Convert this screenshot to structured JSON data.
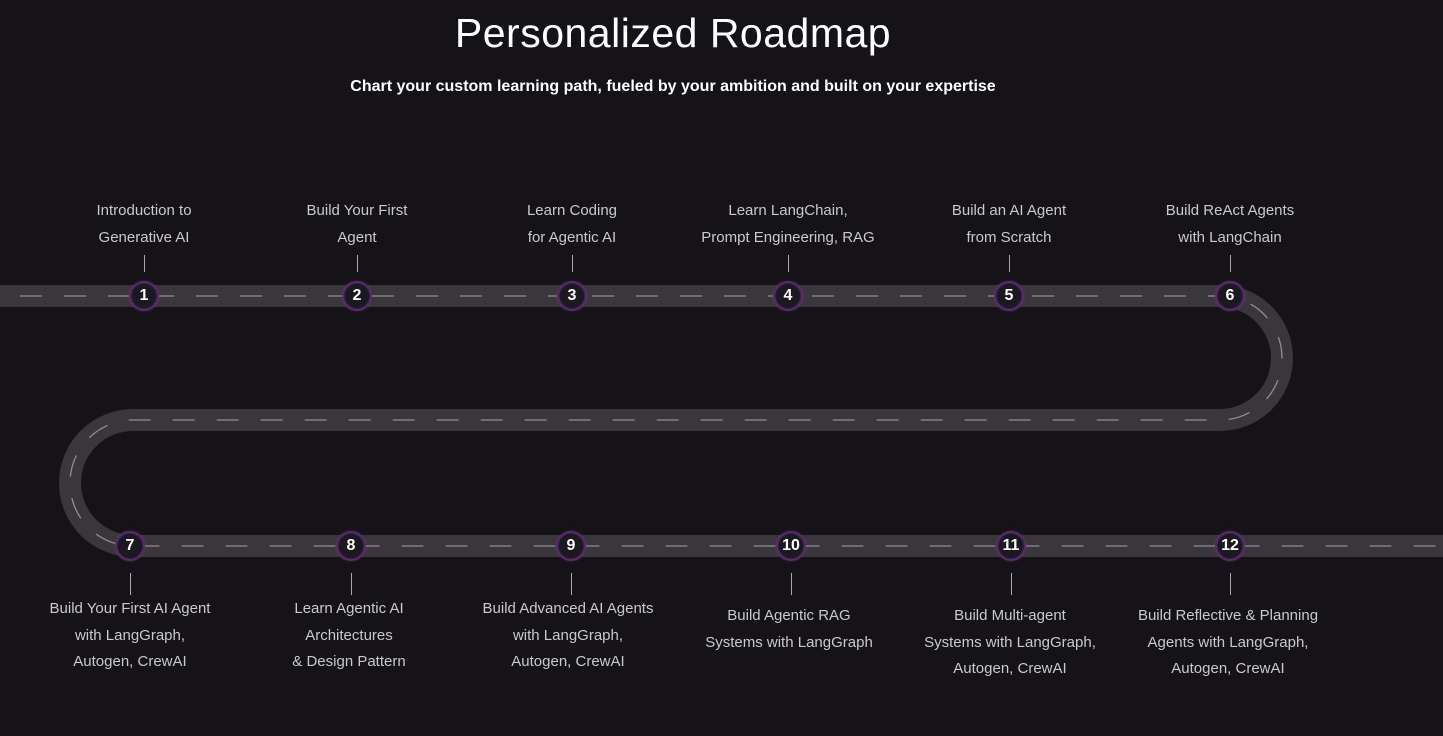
{
  "header": {
    "title": "Personalized Roadmap",
    "subtitle": "Chart your custom learning path, fueled by your ambition and built on your expertise"
  },
  "colors": {
    "background": "#151317",
    "road": "#39373b",
    "lane_dash": "#8f8f94",
    "marker_ring": "#5b2a63",
    "marker_fill": "#1b1820",
    "label_text": "#c9c9ce"
  },
  "milestones": [
    {
      "number": "1",
      "label": "Introduction to\nGenerative AI"
    },
    {
      "number": "2",
      "label": "Build Your First\nAgent"
    },
    {
      "number": "3",
      "label": "Learn Coding\nfor Agentic AI"
    },
    {
      "number": "4",
      "label": "Learn LangChain,\nPrompt Engineering, RAG"
    },
    {
      "number": "5",
      "label": "Build an AI Agent\nfrom Scratch"
    },
    {
      "number": "6",
      "label": "Build ReAct Agents\nwith LangChain"
    },
    {
      "number": "7",
      "label": "Build Your First AI Agent\nwith LangGraph,\nAutogen, CrewAI"
    },
    {
      "number": "8",
      "label": "Learn Agentic AI\nArchitectures\n& Design Pattern"
    },
    {
      "number": "9",
      "label": "Build Advanced AI Agents\nwith LangGraph,\nAutogen, CrewAI"
    },
    {
      "number": "10",
      "label": "Build Agentic RAG\nSystems with LangGraph"
    },
    {
      "number": "11",
      "label": "Build Multi-agent\nSystems with LangGraph,\nAutogen, CrewAI"
    },
    {
      "number": "12",
      "label": "Build Reflective & Planning\nAgents with LangGraph,\nAutogen, CrewAI"
    }
  ]
}
